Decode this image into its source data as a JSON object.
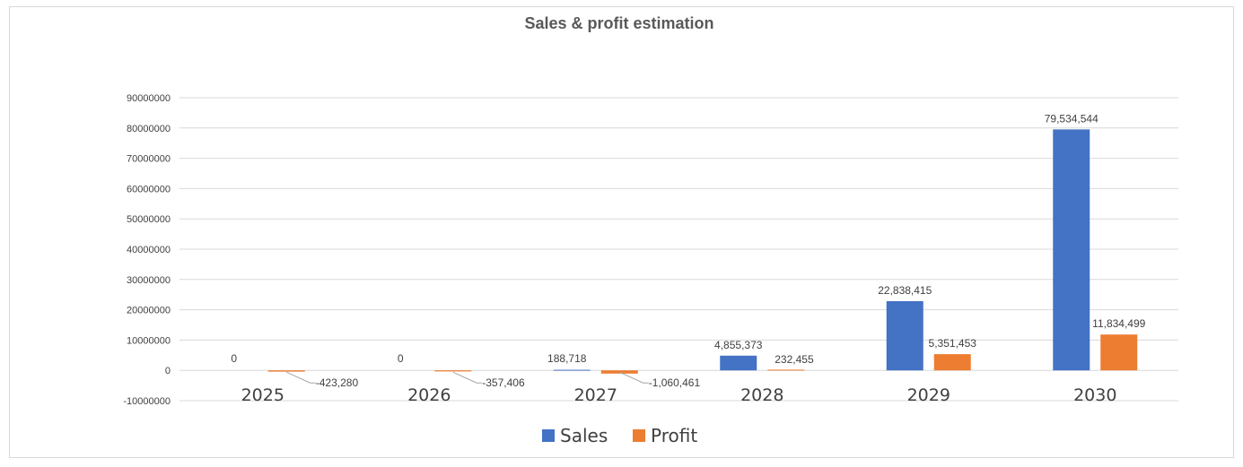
{
  "chart_data": {
    "type": "bar",
    "title": "Sales & profit estimation",
    "categories": [
      "2025",
      "2026",
      "2027",
      "2028",
      "2029",
      "2030"
    ],
    "series": [
      {
        "name": "Sales",
        "color": "#4472c4",
        "values": [
          0,
          0,
          188718,
          4855373,
          22838415,
          79534544
        ],
        "labels": [
          "0",
          "0",
          "188,718",
          "4,855,373",
          "22,838,415",
          "79,534,544"
        ]
      },
      {
        "name": "Profit",
        "color": "#ed7d31",
        "values": [
          -423280,
          -357406,
          -1060461,
          232455,
          5351453,
          11834499
        ],
        "labels": [
          "-423,280",
          "-357,406",
          "-1,060,461",
          "232,455",
          "5,351,453",
          "11,834,499"
        ]
      }
    ],
    "ylim": [
      -10000000,
      90000000
    ],
    "yticks": [
      "-10000000",
      "0",
      "10000000",
      "20000000",
      "30000000",
      "40000000",
      "50000000",
      "60000000",
      "70000000",
      "80000000",
      "90000000"
    ],
    "grid": true,
    "legend": "bottom",
    "xlabel": "",
    "ylabel": ""
  }
}
